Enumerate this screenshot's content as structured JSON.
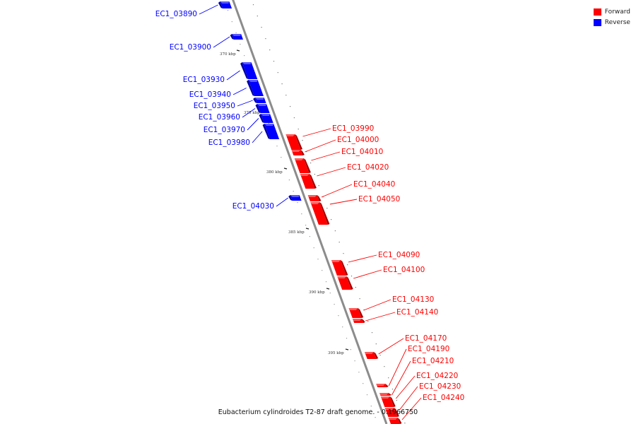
{
  "legend": [
    {
      "label": "Forward",
      "color": "#ff0000"
    },
    {
      "label": "Reverse",
      "color": "#0000ff"
    }
  ],
  "caption": "Eubacterium cylindroides T2-87 draft genome. - 0.1966750",
  "colors": {
    "forward": "#ff0000",
    "reverse": "#0000ff",
    "backbone": "#888888"
  },
  "ticks": [
    "370 kbp",
    "375 kbp",
    "380 kbp",
    "385 kbp",
    "390 kbp",
    "395 kbp"
  ],
  "genes": [
    {
      "name": "EC1_03890",
      "strand": "reverse"
    },
    {
      "name": "EC1_03900",
      "strand": "reverse"
    },
    {
      "name": "EC1_03930",
      "strand": "reverse"
    },
    {
      "name": "EC1_03940",
      "strand": "reverse"
    },
    {
      "name": "EC1_03950",
      "strand": "reverse"
    },
    {
      "name": "EC1_03960",
      "strand": "reverse"
    },
    {
      "name": "EC1_03970",
      "strand": "reverse"
    },
    {
      "name": "EC1_03980",
      "strand": "reverse"
    },
    {
      "name": "EC1_03990",
      "strand": "forward"
    },
    {
      "name": "EC1_04000",
      "strand": "forward"
    },
    {
      "name": "EC1_04010",
      "strand": "forward"
    },
    {
      "name": "EC1_04020",
      "strand": "forward"
    },
    {
      "name": "EC1_04030",
      "strand": "reverse"
    },
    {
      "name": "EC1_04040",
      "strand": "forward"
    },
    {
      "name": "EC1_04050",
      "strand": "forward"
    },
    {
      "name": "EC1_04090",
      "strand": "forward"
    },
    {
      "name": "EC1_04100",
      "strand": "forward"
    },
    {
      "name": "EC1_04130",
      "strand": "forward"
    },
    {
      "name": "EC1_04140",
      "strand": "forward"
    },
    {
      "name": "EC1_04170",
      "strand": "forward"
    },
    {
      "name": "EC1_04190",
      "strand": "forward"
    },
    {
      "name": "EC1_04210",
      "strand": "forward"
    },
    {
      "name": "EC1_04220",
      "strand": "forward"
    },
    {
      "name": "EC1_04230",
      "strand": "forward"
    },
    {
      "name": "EC1_04240",
      "strand": "forward"
    }
  ]
}
